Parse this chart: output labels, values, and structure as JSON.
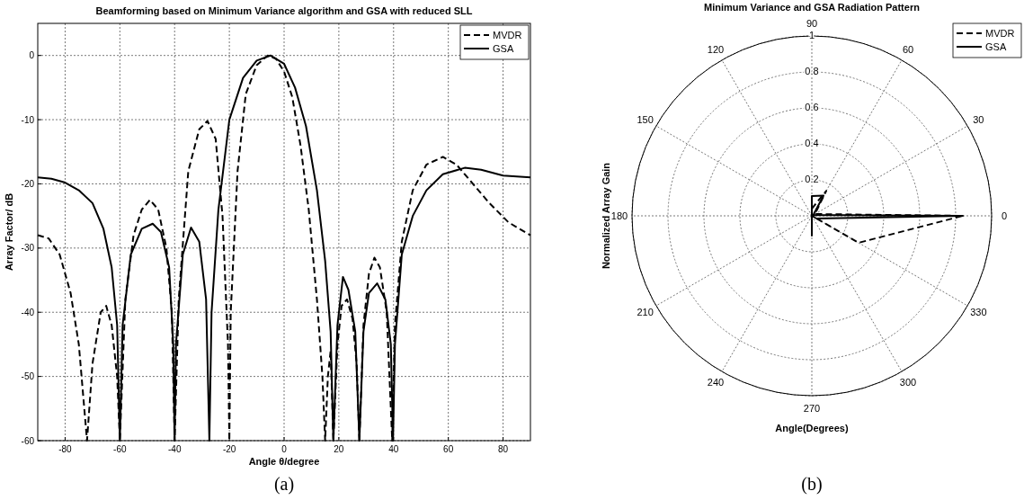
{
  "chart_data": [
    {
      "type": "line",
      "title": "Beamforming based on Minimum Variance algorithm and GSA with reduced SLL",
      "xlabel": "Angle θ/degree",
      "ylabel": "Array Factor/ dB",
      "xlim": [
        -90,
        90
      ],
      "ylim": [
        -60,
        5
      ],
      "xticks": [
        -80,
        -60,
        -40,
        -20,
        0,
        20,
        40,
        60,
        80
      ],
      "yticks": [
        -60,
        -50,
        -40,
        -30,
        -20,
        -10,
        0
      ],
      "grid": true,
      "legend": "top right",
      "annotations": [
        "(a)"
      ],
      "series": [
        {
          "name": "MVDR",
          "color": "#000000",
          "line_style": "dashed",
          "x": [
            -90,
            -86,
            -82,
            -78,
            -75,
            -72,
            -70,
            -67,
            -65,
            -63,
            -61,
            -60,
            -58,
            -55,
            -52,
            -49,
            -46,
            -43,
            -41,
            -40,
            -38.5,
            -35,
            -31,
            -28,
            -25,
            -22.5,
            -20.5,
            -20,
            -19.5,
            -17,
            -14,
            -10,
            -6,
            -3,
            0,
            3,
            6,
            9,
            12,
            14,
            15,
            16,
            17,
            18,
            19.5,
            21,
            23,
            25,
            26.5,
            27.5,
            29,
            31,
            33,
            35,
            37.5,
            39.5,
            40.5,
            43,
            47,
            52,
            58,
            63,
            68,
            75,
            82,
            90
          ],
          "values": [
            -28,
            -28.5,
            -31,
            -37,
            -45,
            -60,
            -48,
            -40,
            -39,
            -42,
            -50,
            -60,
            -38,
            -28,
            -24,
            -22.5,
            -24,
            -30,
            -40,
            -60,
            -38,
            -18,
            -11.5,
            -10.2,
            -13,
            -25,
            -45,
            -60,
            -40,
            -18,
            -6,
            -1.5,
            0,
            -0.5,
            -2.5,
            -6.5,
            -14,
            -24,
            -38,
            -50,
            -60,
            -50,
            -46,
            -60,
            -45,
            -39,
            -38,
            -41,
            -48,
            -60,
            -42,
            -34,
            -31.5,
            -33,
            -40,
            -60,
            -42,
            -29,
            -21,
            -17,
            -15.8,
            -17,
            -19.5,
            -23,
            -26,
            -28
          ]
        },
        {
          "name": "GSA",
          "color": "#000000",
          "line_style": "solid",
          "x": [
            -90,
            -85,
            -80,
            -75,
            -70,
            -66,
            -63,
            -61,
            -60,
            -59,
            -56,
            -52,
            -48,
            -45,
            -42,
            -40.5,
            -40,
            -39.5,
            -37,
            -34,
            -31,
            -28.5,
            -27.3,
            -26.5,
            -24,
            -20,
            -15,
            -10,
            -5,
            0,
            4,
            8,
            12,
            15,
            17,
            18,
            19.5,
            21.5,
            23.5,
            26,
            27.5,
            29,
            31,
            34,
            37,
            39,
            39.8,
            40.5,
            43,
            47,
            52,
            58,
            66,
            72,
            80,
            90
          ],
          "values": [
            -19,
            -19.2,
            -19.8,
            -21,
            -23,
            -27,
            -33,
            -42,
            -60,
            -42,
            -31,
            -27,
            -26.2,
            -27.5,
            -33,
            -45,
            -60,
            -45,
            -31,
            -26.8,
            -29,
            -38,
            -60,
            -40,
            -24,
            -10,
            -3.5,
            -0.8,
            0,
            -1.3,
            -5,
            -11,
            -21,
            -32,
            -43,
            -60,
            -42,
            -34.5,
            -36.5,
            -43,
            -60,
            -43,
            -37,
            -35.5,
            -38,
            -45,
            -60,
            -45,
            -31,
            -25,
            -21,
            -18.5,
            -17.5,
            -17.8,
            -18.7,
            -19
          ]
        }
      ]
    },
    {
      "type": "radar",
      "title": "Minimum Variance and GSA Radiation Pattern",
      "xlabel": "Angle(Degrees)",
      "ylabel": "Normalized Array Gain",
      "ylim": [
        0,
        1
      ],
      "yticks": [
        0.2,
        0.4,
        0.6,
        0.8,
        1
      ],
      "grid": true,
      "legend": "top right",
      "annotations": [
        "(b)"
      ],
      "categories": [
        "90",
        "60",
        "30",
        "0",
        "330",
        "300",
        "270",
        "240",
        "210",
        "180",
        "150",
        "120"
      ],
      "series": [
        {
          "name": "MVDR",
          "color": "#000000",
          "line_style": "dashed",
          "values": [
            0.04,
            0.16,
            0.02,
            0.84,
            0.3,
            0,
            0.04,
            0,
            0,
            0,
            0,
            0
          ]
        },
        {
          "name": "GSA",
          "color": "#000000",
          "line_style": "solid",
          "values": [
            0.11,
            0.13,
            0.01,
            0.84,
            0.03,
            0,
            0.11,
            0,
            0,
            0,
            0,
            0
          ]
        }
      ]
    }
  ]
}
